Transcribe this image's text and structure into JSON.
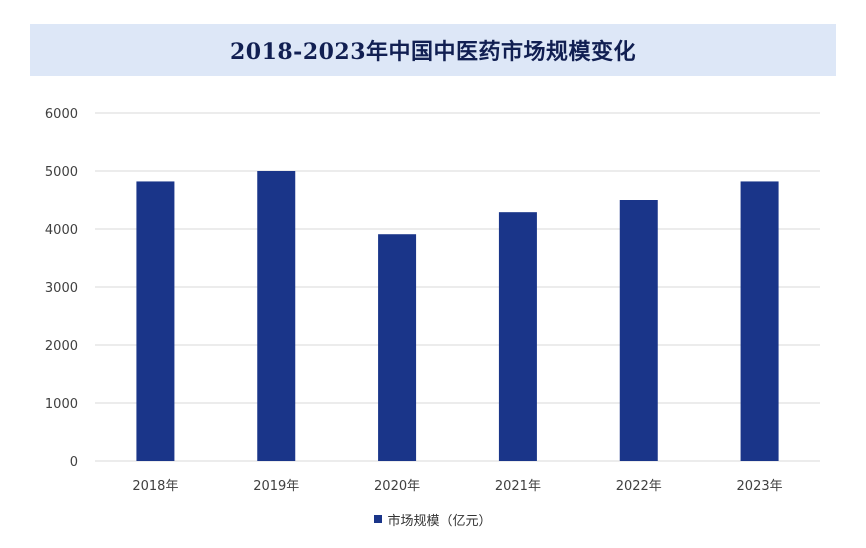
{
  "chart_data": {
    "type": "bar",
    "title": "2018-2023年中国中医药市场规模变化",
    "categories": [
      "2018年",
      "2019年",
      "2020年",
      "2021年",
      "2022年",
      "2023年"
    ],
    "series": [
      {
        "name": "市场规模（亿元）",
        "values": [
          4820,
          5000,
          3910,
          4290,
          4500,
          4820
        ]
      }
    ],
    "ylim": [
      0,
      6000
    ],
    "yticks": [
      "0",
      "1000",
      "2000",
      "3000",
      "4000",
      "5000",
      "6000"
    ],
    "grid": true,
    "legend_position": "bottom",
    "colors": {
      "bar": "#1a3589",
      "title_bg": "#dde7f7",
      "title_text": "#111f52",
      "grid": "#d9d9d9"
    }
  }
}
